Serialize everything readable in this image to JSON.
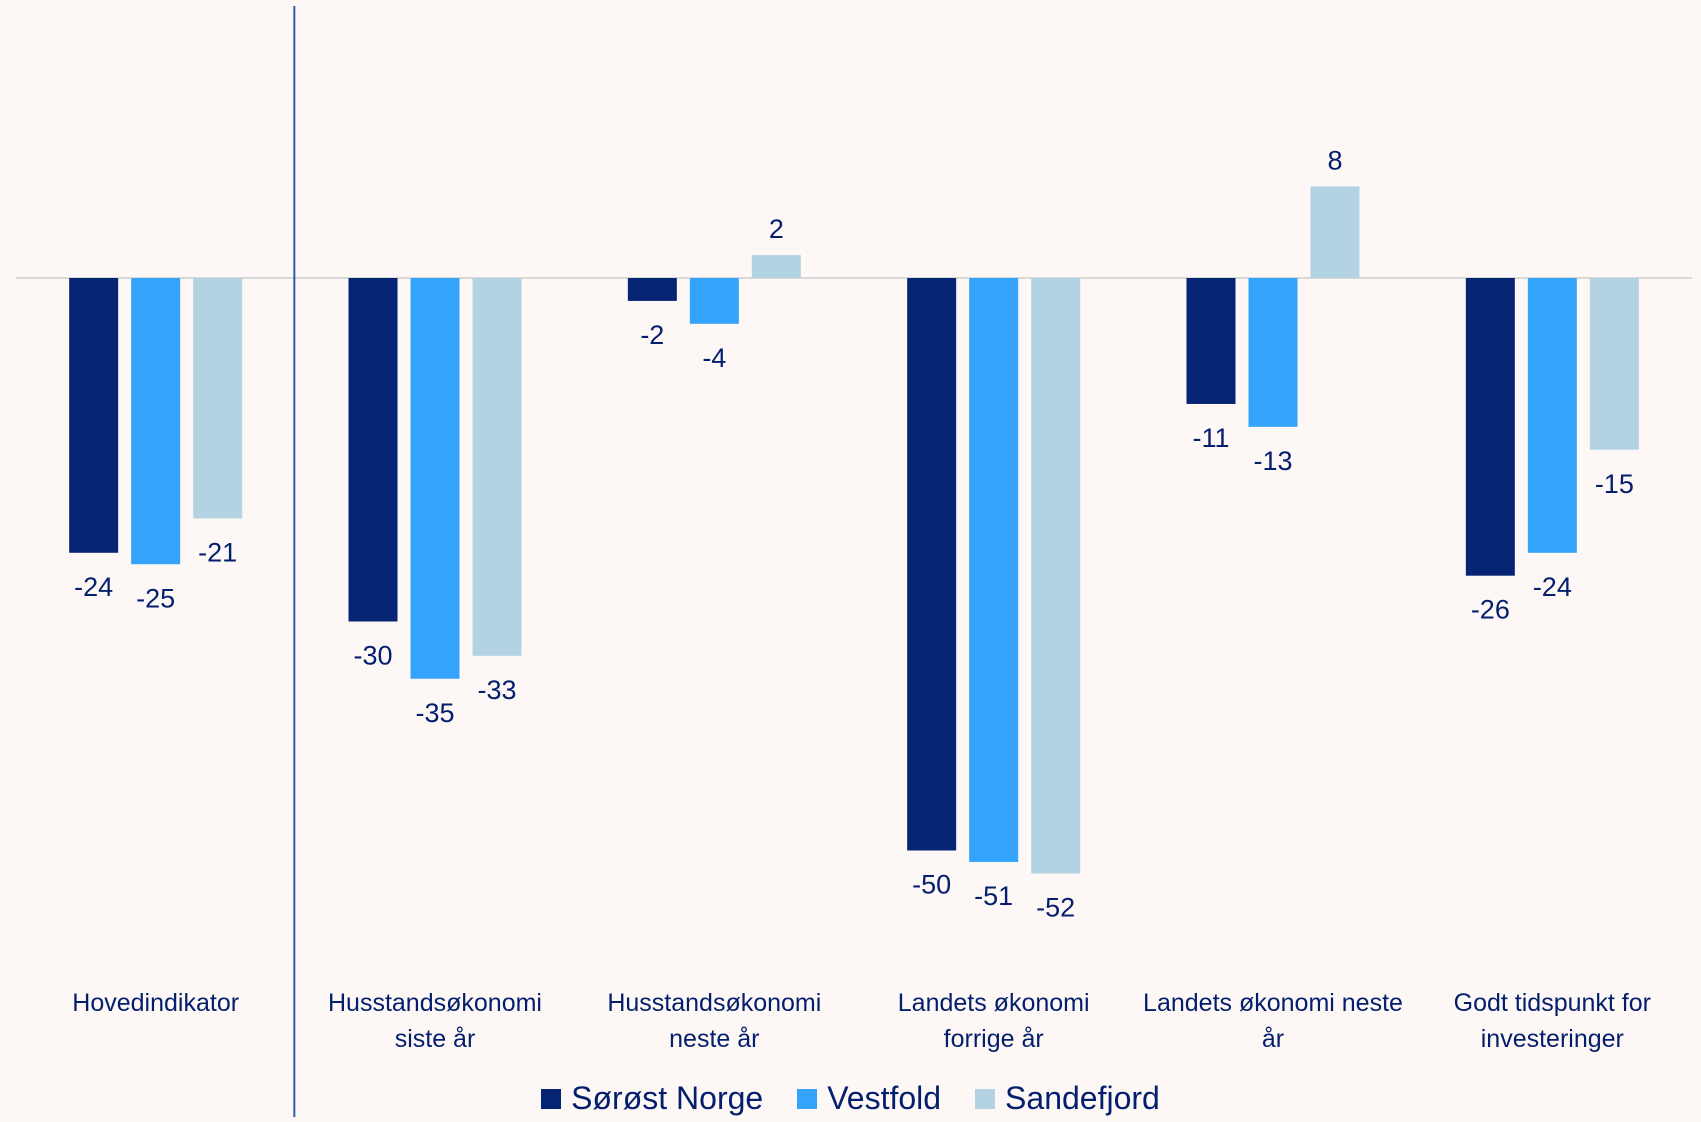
{
  "chart_data": {
    "type": "bar",
    "categories": [
      [
        "Hovedindikator"
      ],
      [
        "Husstandsøkonomi",
        "siste år"
      ],
      [
        "Husstandsøkonomi",
        "neste år"
      ],
      [
        "Landets økonomi",
        "forrige år"
      ],
      [
        "Landets økonomi neste",
        "år"
      ],
      [
        "Godt tidspunkt for",
        "investeringer"
      ]
    ],
    "series": [
      {
        "name": "Sørøst Norge",
        "color": "#062474",
        "values": [
          -24,
          -30,
          -2,
          -50,
          -11,
          -26
        ]
      },
      {
        "name": "Vestfold",
        "color": "#33a3fb",
        "values": [
          -25,
          -35,
          -4,
          -51,
          -13,
          -24
        ]
      },
      {
        "name": "Sandefjord",
        "color": "#b3d3e3",
        "values": [
          -21,
          -33,
          2,
          -52,
          8,
          -15
        ]
      }
    ],
    "ylim": [
      -52,
      8
    ],
    "data_labels": true,
    "grid": false,
    "legend_position": "bottom",
    "separator_after_category": 0,
    "colors": {
      "background": "#fdf8f5",
      "text": "#041e6e",
      "zero_line": "#d9d9d9",
      "separator": "#2e5ca8"
    }
  }
}
